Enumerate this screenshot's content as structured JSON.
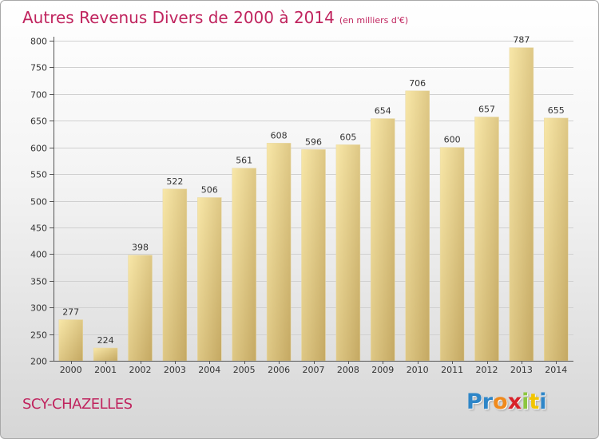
{
  "title": {
    "main": "Autres Revenus Divers de 2000 à 2014",
    "unit": "(en milliers d'€)"
  },
  "commune": "SCY-CHAZELLES",
  "logo": {
    "text": "Proxiti",
    "letters": [
      "P",
      "r",
      "o",
      "x",
      "i",
      "t",
      "i"
    ],
    "colors": [
      "#2e86c8",
      "#2e86c8",
      "#f08a1c",
      "#d8222a",
      "#8cc63f",
      "#f2c500",
      "#2e86c8"
    ]
  },
  "colors": {
    "title": "#c0245e",
    "bar_light": "#f7e3a0",
    "bar_dark": "#c9ad66",
    "grid": "#d0d0d0"
  },
  "chart_data": {
    "type": "bar",
    "title": "Autres Revenus Divers de 2000 à 2014",
    "subtitle": "(en milliers d'€)",
    "categories": [
      "2000",
      "2001",
      "2002",
      "2003",
      "2004",
      "2005",
      "2006",
      "2007",
      "2008",
      "2009",
      "2010",
      "2011",
      "2012",
      "2013",
      "2014"
    ],
    "values": [
      277,
      224,
      398,
      522,
      506,
      561,
      608,
      596,
      605,
      654,
      706,
      600,
      657,
      787,
      655
    ],
    "ylim": [
      200,
      800
    ],
    "yticks": [
      200,
      250,
      300,
      350,
      400,
      450,
      500,
      550,
      600,
      650,
      700,
      750,
      800
    ],
    "grid": true,
    "legend": "none"
  }
}
